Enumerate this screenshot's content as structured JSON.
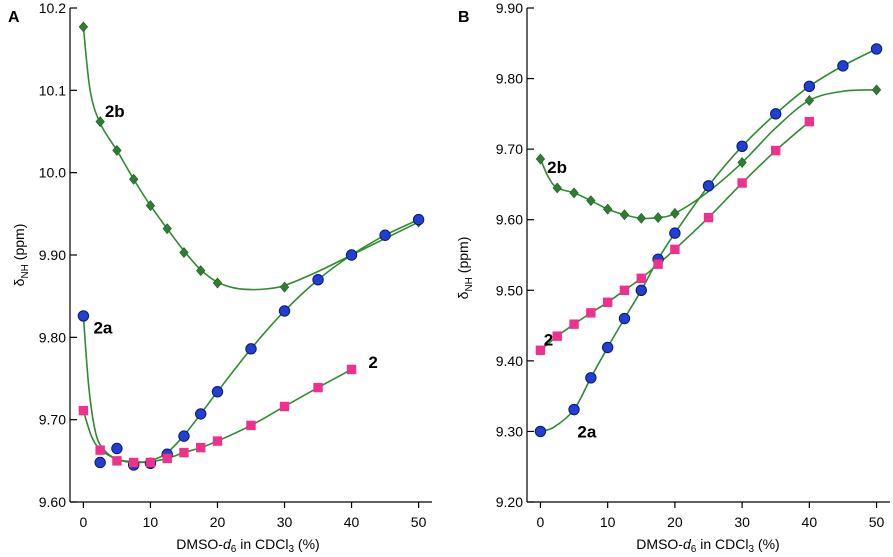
{
  "colors": {
    "curve": "#2e8b2e",
    "diamond": "#2e7d32",
    "circle_fill": "#1f3fd6",
    "circle_stroke": "#0b1a66",
    "square": "#f0308c"
  },
  "chart_data": [
    {
      "type": "scatter",
      "panel": "A",
      "xlabel": "DMSO-d6 in CDCl3 (%)",
      "ylabel": "δNH (ppm)",
      "xlim": [
        -2,
        52
      ],
      "ylim": [
        9.6,
        10.2
      ],
      "xticks": [
        0,
        10,
        20,
        30,
        40,
        50
      ],
      "xtick_labels": [
        "0",
        "10",
        "20",
        "30",
        "40",
        "50"
      ],
      "yticks": [
        9.6,
        9.7,
        9.8,
        9.9,
        10.0,
        10.1,
        10.2
      ],
      "ytick_labels": [
        "9.60",
        "9.70",
        "9.80",
        "9.90",
        "10.0",
        "10.1",
        "10.2"
      ],
      "series": [
        {
          "name": "2b",
          "marker": "diamond",
          "x": [
            0,
            2.5,
            5,
            7.5,
            10,
            12.5,
            15,
            17.5,
            20,
            30,
            40,
            50
          ],
          "y": [
            10.177,
            10.062,
            10.027,
            9.992,
            9.96,
            9.932,
            9.903,
            9.881,
            9.866,
            9.861,
            9.9,
            9.94
          ],
          "curve_x": [
            0,
            1,
            2.5,
            5,
            7.5,
            10,
            12.5,
            15,
            17.5,
            20,
            22.5,
            25,
            27.5,
            30,
            35,
            40,
            45,
            50
          ],
          "curve_y": [
            10.177,
            10.1,
            10.06,
            10.027,
            9.992,
            9.96,
            9.932,
            9.905,
            9.882,
            9.867,
            9.86,
            9.858,
            9.859,
            9.863,
            9.88,
            9.9,
            9.92,
            9.94
          ],
          "label": "2b",
          "label_at": [
            3.2,
            10.075
          ]
        },
        {
          "name": "2a",
          "marker": "circle",
          "x": [
            0,
            2.5,
            5,
            7.5,
            10,
            12.5,
            15,
            17.5,
            20,
            25,
            30,
            35,
            40,
            45,
            50
          ],
          "y": [
            9.826,
            9.648,
            9.665,
            9.645,
            9.647,
            9.658,
            9.68,
            9.707,
            9.734,
            9.786,
            9.832,
            9.87,
            9.9,
            9.924,
            9.943
          ],
          "curve_x": [
            0,
            0.8,
            1.8,
            3,
            5,
            7.5,
            10,
            12.5,
            15,
            17.5,
            20,
            25,
            30,
            35,
            40,
            45,
            50
          ],
          "curve_y": [
            9.826,
            9.74,
            9.685,
            9.664,
            9.652,
            9.648,
            9.65,
            9.66,
            9.681,
            9.707,
            9.734,
            9.786,
            9.832,
            9.87,
            9.9,
            9.924,
            9.943
          ],
          "label": "2a",
          "label_at": [
            1.5,
            9.812
          ]
        },
        {
          "name": "2",
          "marker": "square",
          "x": [
            0,
            2.5,
            5,
            7.5,
            10,
            12.5,
            15,
            17.5,
            20,
            25,
            30,
            35,
            40
          ],
          "y": [
            9.711,
            9.663,
            9.65,
            9.648,
            9.648,
            9.653,
            9.66,
            9.666,
            9.674,
            9.693,
            9.716,
            9.739,
            9.761
          ],
          "curve_x": [
            0,
            1.2,
            2.5,
            5,
            7.5,
            10,
            12.5,
            15,
            17.5,
            20,
            25,
            30,
            35,
            40
          ],
          "curve_y": [
            9.711,
            9.68,
            9.664,
            9.652,
            9.649,
            9.649,
            9.653,
            9.66,
            9.666,
            9.674,
            9.693,
            9.716,
            9.739,
            9.761
          ],
          "label": "2",
          "label_at": [
            42.5,
            9.77
          ]
        }
      ]
    },
    {
      "type": "scatter",
      "panel": "B",
      "xlabel": "DMSO-d6 in CDCl3 (%)",
      "ylabel": "δNH (ppm)",
      "xlim": [
        -2,
        52
      ],
      "ylim": [
        9.2,
        9.9
      ],
      "xticks": [
        0,
        10,
        20,
        30,
        40,
        50
      ],
      "xtick_labels": [
        "0",
        "10",
        "20",
        "30",
        "40",
        "50"
      ],
      "yticks": [
        9.2,
        9.3,
        9.4,
        9.5,
        9.6,
        9.7,
        9.8,
        9.9
      ],
      "ytick_labels": [
        "9.20",
        "9.30",
        "9.40",
        "9.50",
        "9.60",
        "9.70",
        "9.80",
        "9.90"
      ],
      "series": [
        {
          "name": "2b",
          "marker": "diamond",
          "x": [
            0,
            2.5,
            5,
            7.5,
            10,
            12.5,
            15,
            17.5,
            20,
            30,
            40,
            50
          ],
          "y": [
            9.686,
            9.645,
            9.638,
            9.627,
            9.615,
            9.607,
            9.602,
            9.603,
            9.609,
            9.681,
            9.769,
            9.784
          ],
          "curve_x": [
            0,
            1.2,
            2.5,
            5,
            7.5,
            10,
            12.5,
            15,
            17.5,
            20,
            25,
            30,
            35,
            40,
            45,
            50
          ],
          "curve_y": [
            9.686,
            9.66,
            9.645,
            9.638,
            9.627,
            9.615,
            9.607,
            9.602,
            9.603,
            9.609,
            9.64,
            9.681,
            9.73,
            9.769,
            9.782,
            9.784
          ],
          "label": "2b",
          "label_at": [
            1.0,
            9.675
          ]
        },
        {
          "name": "2a",
          "marker": "circle",
          "x": [
            0,
            5,
            7.5,
            10,
            12.5,
            15,
            17.5,
            20,
            25,
            30,
            35,
            40,
            45,
            50
          ],
          "y": [
            9.3,
            9.331,
            9.376,
            9.419,
            9.46,
            9.5,
            9.544,
            9.581,
            9.648,
            9.704,
            9.75,
            9.789,
            9.818,
            9.842
          ],
          "curve_x": [
            0,
            2,
            5,
            7.5,
            10,
            12.5,
            15,
            17.5,
            20,
            25,
            30,
            35,
            40,
            45,
            50
          ],
          "curve_y": [
            9.3,
            9.306,
            9.331,
            9.376,
            9.419,
            9.46,
            9.5,
            9.544,
            9.581,
            9.648,
            9.704,
            9.75,
            9.789,
            9.818,
            9.842
          ],
          "label": "2a",
          "label_at": [
            5.5,
            9.3
          ]
        },
        {
          "name": "2",
          "marker": "square",
          "x": [
            0,
            2.5,
            5,
            7.5,
            10,
            12.5,
            15,
            17.5,
            20,
            25,
            30,
            35,
            40
          ],
          "y": [
            9.415,
            9.435,
            9.452,
            9.468,
            9.483,
            9.5,
            9.517,
            9.537,
            9.558,
            9.603,
            9.652,
            9.698,
            9.739
          ],
          "curve_x": [
            0,
            2.5,
            5,
            7.5,
            10,
            12.5,
            15,
            17.5,
            20,
            25,
            30,
            35,
            40
          ],
          "curve_y": [
            9.415,
            9.435,
            9.452,
            9.468,
            9.483,
            9.5,
            9.517,
            9.537,
            9.558,
            9.603,
            9.652,
            9.698,
            9.739
          ],
          "label": "2",
          "label_at": [
            0.5,
            9.43
          ]
        }
      ]
    }
  ]
}
